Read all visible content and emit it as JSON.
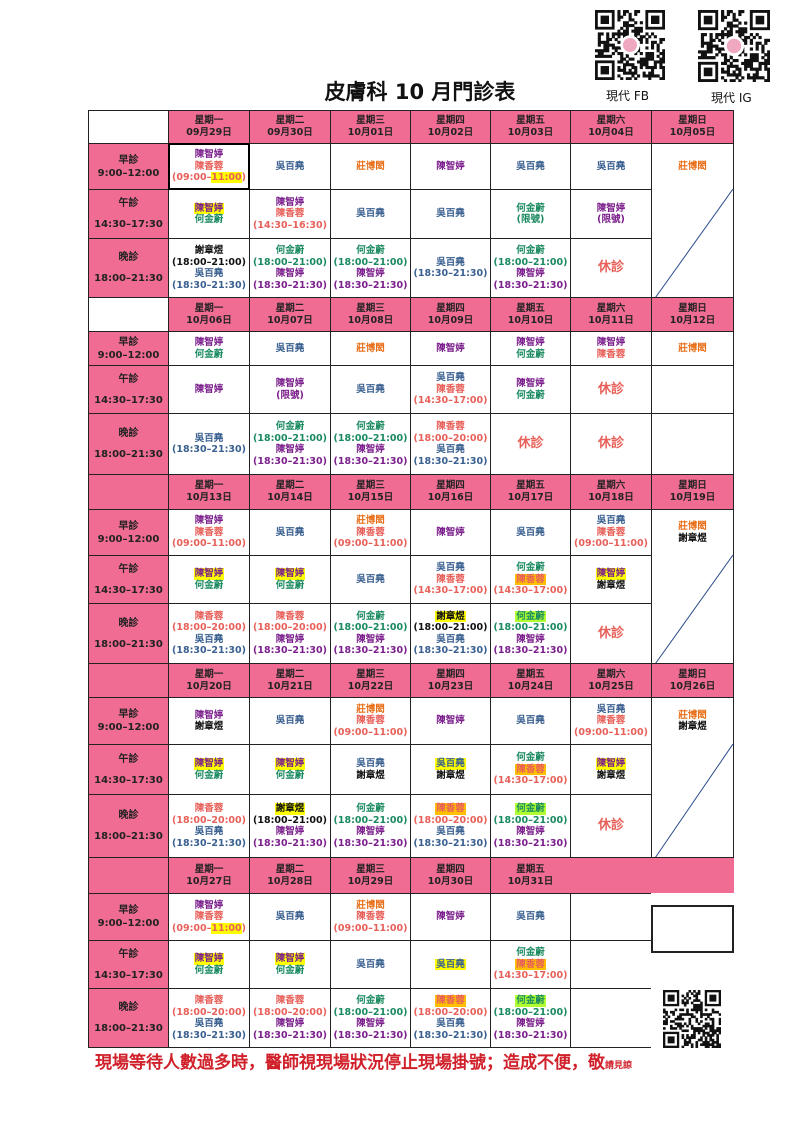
{
  "title": "皮膚科 10 月門診表",
  "qr_labels": {
    "fb": "現代 FB",
    "ig": "現代 IG"
  },
  "footer": {
    "main": "現場等待人數過多時，醫師視現場狀況停止現場掛號；造成不便，敬",
    "tail": "請見諒"
  },
  "labels": {
    "closed": "休診"
  },
  "slots": [
    {
      "name": "早診",
      "time": "9:00–12:00"
    },
    {
      "name": "午診",
      "time": "14:30–17:30"
    },
    {
      "name": "晚診",
      "time": "18:00–21:30"
    }
  ],
  "doctors": {
    "P": {
      "name": "陳智婷",
      "color": "#7b1f8c"
    },
    "S": {
      "name": "陳香蓉",
      "color": "#e8605a"
    },
    "B": {
      "name": "吳百堯",
      "color": "#3a6090"
    },
    "O": {
      "name": "莊博閎",
      "color": "#e8701a"
    },
    "G": {
      "name": "何金蔚",
      "color": "#1a8a60"
    },
    "K": {
      "name": "謝章煜",
      "color": "#111111"
    }
  },
  "highlights": {
    "yellow": "#ffff00",
    "orange": "#ffc000",
    "lime": "#b0ff30"
  },
  "colors": {
    "header_pink": "#f06c93",
    "diagonal": "#2a4a8a"
  },
  "weeks": [
    {
      "days": [
        {
          "wd": "星期一",
          "date": "09月29日",
          "selected_morning": true,
          "m": [
            {
              "d": "P"
            },
            {
              "d": "S",
              "t": "(09:00–11:00)",
              "thl": "11:00"
            }
          ],
          "a": [
            {
              "d": "P",
              "hl": "yellow"
            },
            {
              "d": "G"
            }
          ],
          "e": [
            {
              "d": "K",
              "t": "(18:00–21:00)"
            },
            {
              "d": "B",
              "t": "(18:30–21:30)"
            }
          ]
        },
        {
          "wd": "星期二",
          "date": "09月30日",
          "m": [
            {
              "d": "B"
            }
          ],
          "a": [
            {
              "d": "P"
            },
            {
              "d": "S",
              "t": "(14:30–16:30)"
            }
          ],
          "e": [
            {
              "d": "G",
              "t": "(18:00–21:00)"
            },
            {
              "d": "P",
              "t": "(18:30–21:30)"
            }
          ]
        },
        {
          "wd": "星期三",
          "date": "10月01日",
          "m": [
            {
              "d": "O"
            }
          ],
          "a": [
            {
              "d": "B"
            }
          ],
          "e": [
            {
              "d": "G",
              "t": "(18:00–21:00)"
            },
            {
              "d": "P",
              "t": "(18:30–21:30)"
            }
          ]
        },
        {
          "wd": "星期四",
          "date": "10月02日",
          "m": [
            {
              "d": "P"
            }
          ],
          "a": [
            {
              "d": "B"
            }
          ],
          "e": [
            {
              "d": "B",
              "t": "(18:30–21:30)"
            }
          ]
        },
        {
          "wd": "星期五",
          "date": "10月03日",
          "m": [
            {
              "d": "B"
            }
          ],
          "a": [
            {
              "d": "G",
              "t": "(限號)"
            }
          ],
          "e": [
            {
              "d": "G",
              "t": "(18:00–21:00)"
            },
            {
              "d": "P",
              "t": "(18:30–21:30)"
            }
          ]
        },
        {
          "wd": "星期六",
          "date": "10月04日",
          "m": [
            {
              "d": "B"
            }
          ],
          "a": [
            {
              "d": "P",
              "t": "(限號)"
            }
          ],
          "e": "closed"
        },
        {
          "wd": "星期日",
          "date": "10月05日",
          "m": [
            {
              "d": "O"
            }
          ],
          "a": "none",
          "e": "none"
        }
      ]
    },
    {
      "days": [
        {
          "wd": "星期一",
          "date": "10月06日",
          "m": [
            {
              "d": "P"
            },
            {
              "d": "G"
            }
          ],
          "a": [
            {
              "d": "P"
            }
          ],
          "e": [
            {
              "d": "B",
              "t": "(18:30–21:30)"
            }
          ]
        },
        {
          "wd": "星期二",
          "date": "10月07日",
          "m": [
            {
              "d": "B"
            }
          ],
          "a": [
            {
              "d": "P",
              "t": "(限號)"
            }
          ],
          "e": [
            {
              "d": "G",
              "t": "(18:00–21:00)"
            },
            {
              "d": "P",
              "t": "(18:30–21:30)"
            }
          ]
        },
        {
          "wd": "星期三",
          "date": "10月08日",
          "m": [
            {
              "d": "O"
            }
          ],
          "a": [
            {
              "d": "B"
            }
          ],
          "e": [
            {
              "d": "G",
              "t": "(18:00–21:00)"
            },
            {
              "d": "P",
              "t": "(18:30–21:30)"
            }
          ]
        },
        {
          "wd": "星期四",
          "date": "10月09日",
          "m": [
            {
              "d": "P"
            }
          ],
          "a": [
            {
              "d": "B"
            },
            {
              "d": "S",
              "t": "(14:30–17:00)"
            }
          ],
          "e": [
            {
              "d": "S",
              "t": "(18:00–20:00)"
            },
            {
              "d": "B",
              "t": "(18:30–21:30)"
            }
          ]
        },
        {
          "wd": "星期五",
          "date": "10月10日",
          "m": [
            {
              "d": "P"
            },
            {
              "d": "G"
            }
          ],
          "a": [
            {
              "d": "P"
            },
            {
              "d": "G"
            }
          ],
          "e": "closed"
        },
        {
          "wd": "星期六",
          "date": "10月11日",
          "m": [
            {
              "d": "P"
            },
            {
              "d": "S"
            }
          ],
          "a": "closed",
          "e": "closed"
        },
        {
          "wd": "星期日",
          "date": "10月12日",
          "m": [
            {
              "d": "O"
            }
          ],
          "a": [],
          "e": []
        }
      ]
    },
    {
      "days": [
        {
          "wd": "星期一",
          "date": "10月13日",
          "m": [
            {
              "d": "P"
            },
            {
              "d": "S",
              "t": "(09:00–11:00)"
            }
          ],
          "a": [
            {
              "d": "P",
              "hl": "yellow"
            },
            {
              "d": "G"
            }
          ],
          "e": [
            {
              "d": "S",
              "t": "(18:00–20:00)"
            },
            {
              "d": "B",
              "t": "(18:30–21:30)"
            }
          ]
        },
        {
          "wd": "星期二",
          "date": "10月14日",
          "m": [
            {
              "d": "B"
            }
          ],
          "a": [
            {
              "d": "P",
              "hl": "yellow"
            },
            {
              "d": "G"
            }
          ],
          "e": [
            {
              "d": "S",
              "t": "(18:00–20:00)"
            },
            {
              "d": "P",
              "t": "(18:30–21:30)"
            }
          ]
        },
        {
          "wd": "星期三",
          "date": "10月15日",
          "m": [
            {
              "d": "O"
            },
            {
              "d": "S",
              "t": "(09:00–11:00)"
            }
          ],
          "a": [
            {
              "d": "B"
            }
          ],
          "e": [
            {
              "d": "G",
              "t": "(18:00–21:00)"
            },
            {
              "d": "P",
              "t": "(18:30–21:30)"
            }
          ]
        },
        {
          "wd": "星期四",
          "date": "10月16日",
          "m": [
            {
              "d": "P"
            }
          ],
          "a": [
            {
              "d": "B"
            },
            {
              "d": "S",
              "t": "(14:30–17:00)"
            }
          ],
          "e": [
            {
              "d": "K",
              "hl": "yellow",
              "t": "(18:00–21:00)"
            },
            {
              "d": "B",
              "t": "(18:30–21:30)"
            }
          ]
        },
        {
          "wd": "星期五",
          "date": "10月17日",
          "m": [
            {
              "d": "B"
            }
          ],
          "a": [
            {
              "d": "G"
            },
            {
              "d": "S",
              "hl": "orange",
              "t": "(14:30–17:00)"
            }
          ],
          "e": [
            {
              "d": "G",
              "hl": "lime",
              "t": "(18:00–21:00)"
            },
            {
              "d": "P",
              "t": "(18:30–21:30)"
            }
          ]
        },
        {
          "wd": "星期六",
          "date": "10月18日",
          "m": [
            {
              "d": "B"
            },
            {
              "d": "S",
              "t": "(09:00–11:00)"
            }
          ],
          "a": [
            {
              "d": "P",
              "hl": "yellow"
            },
            {
              "d": "K"
            }
          ],
          "e": "closed"
        },
        {
          "wd": "星期日",
          "date": "10月19日",
          "m": [
            {
              "d": "O"
            },
            {
              "d": "K"
            }
          ],
          "a": "none",
          "e": "none"
        }
      ]
    },
    {
      "days": [
        {
          "wd": "星期一",
          "date": "10月20日",
          "m": [
            {
              "d": "P"
            },
            {
              "d": "K"
            }
          ],
          "a": [
            {
              "d": "P",
              "hl": "yellow"
            },
            {
              "d": "G"
            }
          ],
          "e": [
            {
              "d": "S",
              "t": "(18:00–20:00)"
            },
            {
              "d": "B",
              "t": "(18:30–21:30)"
            }
          ]
        },
        {
          "wd": "星期二",
          "date": "10月21日",
          "m": [
            {
              "d": "B"
            }
          ],
          "a": [
            {
              "d": "P",
              "hl": "yellow"
            },
            {
              "d": "G"
            }
          ],
          "e": [
            {
              "d": "K",
              "hl": "yellow",
              "t": "(18:00–21:00)"
            },
            {
              "d": "P",
              "t": "(18:30–21:30)"
            }
          ]
        },
        {
          "wd": "星期三",
          "date": "10月22日",
          "m": [
            {
              "d": "O"
            },
            {
              "d": "S",
              "t": "(09:00–11:00)"
            }
          ],
          "a": [
            {
              "d": "B"
            },
            {
              "d": "K"
            }
          ],
          "e": [
            {
              "d": "G",
              "t": "(18:00–21:00)"
            },
            {
              "d": "P",
              "t": "(18:30–21:30)"
            }
          ]
        },
        {
          "wd": "星期四",
          "date": "10月23日",
          "m": [
            {
              "d": "P"
            }
          ],
          "a": [
            {
              "d": "B",
              "hl": "yellow"
            },
            {
              "d": "K"
            }
          ],
          "e": [
            {
              "d": "S",
              "hl": "orange",
              "t": "(18:00–20:00)"
            },
            {
              "d": "B",
              "t": "(18:30–21:30)"
            }
          ]
        },
        {
          "wd": "星期五",
          "date": "10月24日",
          "m": [
            {
              "d": "B"
            }
          ],
          "a": [
            {
              "d": "G"
            },
            {
              "d": "S",
              "hl": "orange",
              "t": "(14:30–17:00)"
            }
          ],
          "e": [
            {
              "d": "G",
              "hl": "lime",
              "t": "(18:00–21:00)"
            },
            {
              "d": "P",
              "t": "(18:30–21:30)"
            }
          ]
        },
        {
          "wd": "星期六",
          "date": "10月25日",
          "m": [
            {
              "d": "B"
            },
            {
              "d": "S",
              "t": "(09:00–11:00)"
            }
          ],
          "a": [
            {
              "d": "P",
              "hl": "yellow"
            },
            {
              "d": "K"
            }
          ],
          "e": "closed"
        },
        {
          "wd": "星期日",
          "date": "10月26日",
          "m": [
            {
              "d": "O"
            },
            {
              "d": "K"
            }
          ],
          "a": "none",
          "e": "none"
        }
      ]
    },
    {
      "days": [
        {
          "wd": "星期一",
          "date": "10月27日",
          "m": [
            {
              "d": "P"
            },
            {
              "d": "S",
              "t": "(09:00–11:00)",
              "thl": "11:00"
            }
          ],
          "a": [
            {
              "d": "P",
              "hl": "yellow"
            },
            {
              "d": "G"
            }
          ],
          "e": [
            {
              "d": "S",
              "t": "(18:00–20:00)"
            },
            {
              "d": "B",
              "t": "(18:30–21:30)"
            }
          ]
        },
        {
          "wd": "星期二",
          "date": "10月28日",
          "m": [
            {
              "d": "B"
            }
          ],
          "a": [
            {
              "d": "P",
              "hl": "yellow"
            },
            {
              "d": "G"
            }
          ],
          "e": [
            {
              "d": "S",
              "t": "(18:00–20:00)"
            },
            {
              "d": "P",
              "t": "(18:30–21:30)"
            }
          ]
        },
        {
          "wd": "星期三",
          "date": "10月29日",
          "m": [
            {
              "d": "O"
            },
            {
              "d": "S",
              "t": "(09:00–11:00)"
            }
          ],
          "a": [
            {
              "d": "B"
            }
          ],
          "e": [
            {
              "d": "G",
              "t": "(18:00–21:00)"
            },
            {
              "d": "P",
              "t": "(18:30–21:30)"
            }
          ]
        },
        {
          "wd": "星期四",
          "date": "10月30日",
          "m": [
            {
              "d": "P"
            }
          ],
          "a": [
            {
              "d": "B",
              "hl": "yellow"
            }
          ],
          "e": [
            {
              "d": "S",
              "hl": "orange",
              "t": "(18:00–20:00)"
            },
            {
              "d": "B",
              "t": "(18:30–21:30)"
            }
          ]
        },
        {
          "wd": "星期五",
          "date": "10月31日",
          "m": [
            {
              "d": "B"
            }
          ],
          "a": [
            {
              "d": "G"
            },
            {
              "d": "S",
              "hl": "orange",
              "t": "(14:30–17:00)"
            }
          ],
          "e": [
            {
              "d": "G",
              "hl": "lime",
              "t": "(18:00–21:00)"
            },
            {
              "d": "P",
              "t": "(18:30–21:30)"
            }
          ]
        },
        {
          "wd": "",
          "date": "",
          "m": [],
          "a": [],
          "e": []
        },
        {
          "wd": "",
          "date": "",
          "m": "blank",
          "a": "blank",
          "e": "blank"
        }
      ]
    }
  ]
}
